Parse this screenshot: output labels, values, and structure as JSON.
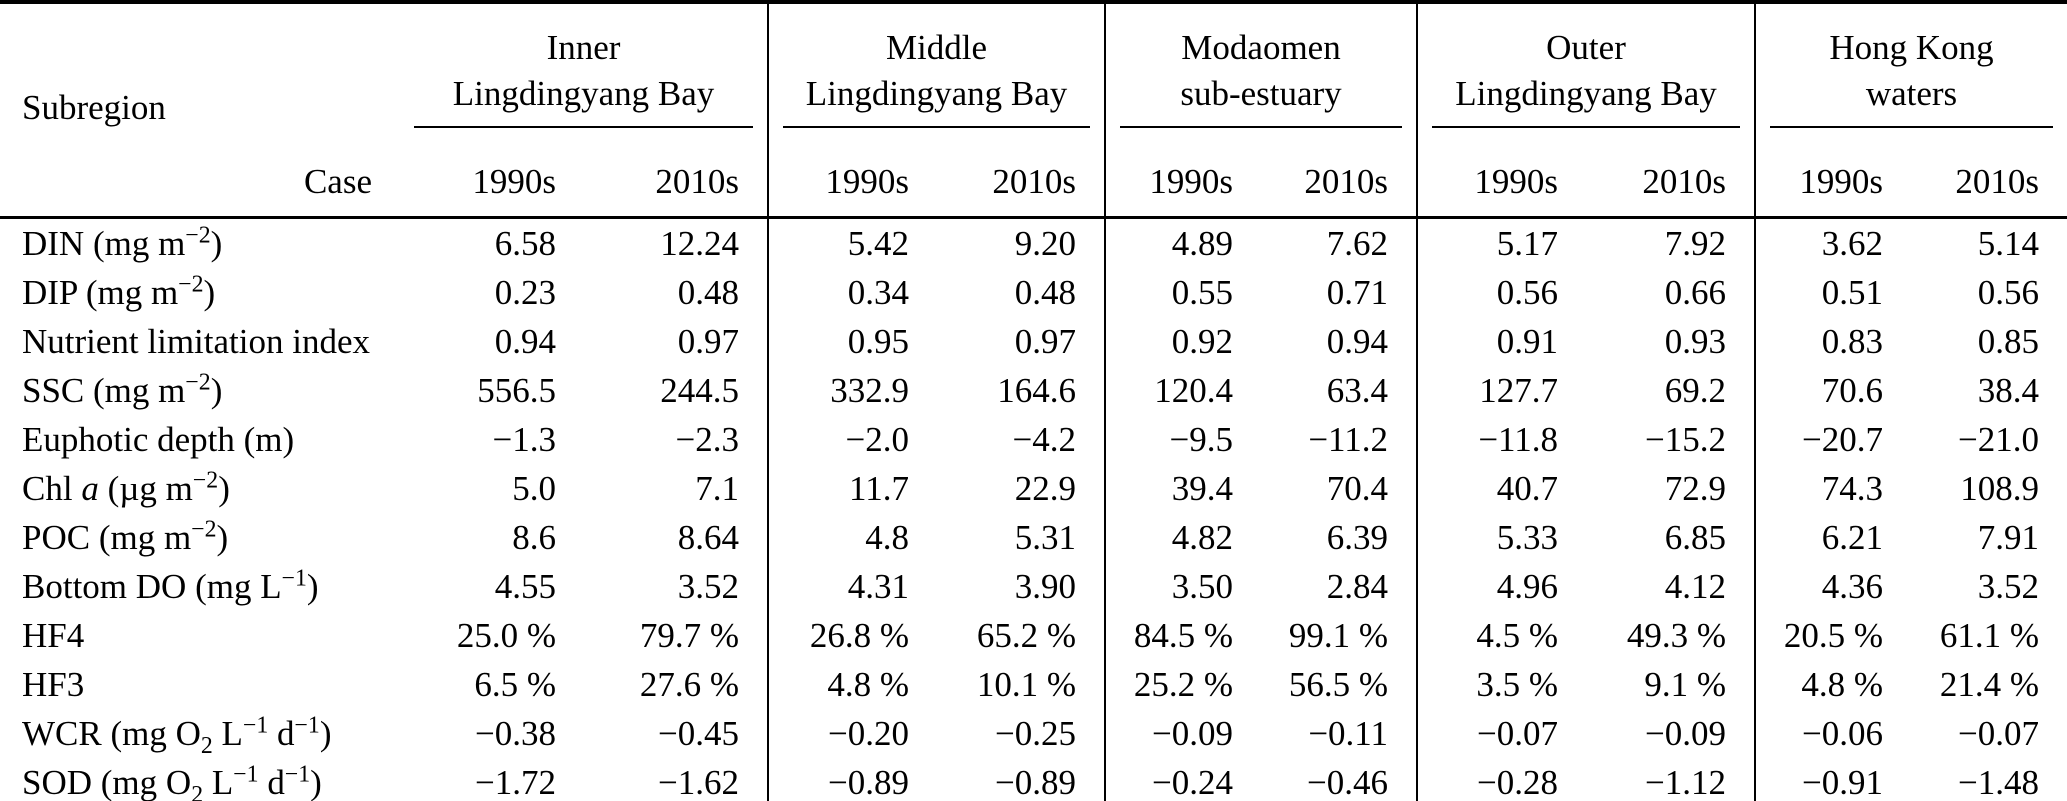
{
  "table": {
    "header": {
      "subregion_label": "Subregion",
      "case_label": "Case",
      "groups": [
        {
          "id": "inner-lingdingyang-bay",
          "lines": [
            "Inner",
            "Lingdingyang Bay"
          ],
          "periods": [
            "1990s",
            "2010s"
          ]
        },
        {
          "id": "middle-lingdingyang-bay",
          "lines": [
            "Middle",
            "Lingdingyang Bay"
          ],
          "periods": [
            "1990s",
            "2010s"
          ]
        },
        {
          "id": "modaomen-sub-estuary",
          "lines": [
            "Modaomen",
            "sub-estuary"
          ],
          "periods": [
            "1990s",
            "2010s"
          ]
        },
        {
          "id": "outer-lingdingyang-bay",
          "lines": [
            "Outer",
            "Lingdingyang Bay"
          ],
          "periods": [
            "1990s",
            "2010s"
          ]
        },
        {
          "id": "hong-kong-waters",
          "lines": [
            "Hong Kong",
            "waters"
          ],
          "periods": [
            "1990s",
            "2010s"
          ]
        }
      ]
    },
    "rows": [
      {
        "id": "din",
        "label": [
          {
            "t": "DIN (mg m"
          },
          {
            "t": "−2",
            "s": "sup"
          },
          {
            "t": ")"
          }
        ],
        "values": [
          "6.58",
          "12.24",
          "5.42",
          "9.20",
          "4.89",
          "7.62",
          "5.17",
          "7.92",
          "3.62",
          "5.14"
        ]
      },
      {
        "id": "dip",
        "label": [
          {
            "t": "DIP (mg m"
          },
          {
            "t": "−2",
            "s": "sup"
          },
          {
            "t": ")"
          }
        ],
        "values": [
          "0.23",
          "0.48",
          "0.34",
          "0.48",
          "0.55",
          "0.71",
          "0.56",
          "0.66",
          "0.51",
          "0.56"
        ]
      },
      {
        "id": "nutrient-limitation-index",
        "label": [
          {
            "t": "Nutrient limitation index"
          }
        ],
        "values": [
          "0.94",
          "0.97",
          "0.95",
          "0.97",
          "0.92",
          "0.94",
          "0.91",
          "0.93",
          "0.83",
          "0.85"
        ]
      },
      {
        "id": "ssc",
        "label": [
          {
            "t": "SSC (mg m"
          },
          {
            "t": "−2",
            "s": "sup"
          },
          {
            "t": ")"
          }
        ],
        "values": [
          "556.5",
          "244.5",
          "332.9",
          "164.6",
          "120.4",
          "63.4",
          "127.7",
          "69.2",
          "70.6",
          "38.4"
        ]
      },
      {
        "id": "euphotic-depth",
        "label": [
          {
            "t": "Euphotic depth (m)"
          }
        ],
        "values": [
          "−1.3",
          "−2.3",
          "−2.0",
          "−4.2",
          "−9.5",
          "−11.2",
          "−11.8",
          "−15.2",
          "−20.7",
          "−21.0"
        ]
      },
      {
        "id": "chl-a",
        "label": [
          {
            "t": "Chl "
          },
          {
            "t": "a",
            "s": "i"
          },
          {
            "t": " (µg m"
          },
          {
            "t": "−2",
            "s": "sup"
          },
          {
            "t": ")"
          }
        ],
        "values": [
          "5.0",
          "7.1",
          "11.7",
          "22.9",
          "39.4",
          "70.4",
          "40.7",
          "72.9",
          "74.3",
          "108.9"
        ]
      },
      {
        "id": "poc",
        "label": [
          {
            "t": "POC (mg m"
          },
          {
            "t": "−2",
            "s": "sup"
          },
          {
            "t": ")"
          }
        ],
        "values": [
          "8.6",
          "8.64",
          "4.8",
          "5.31",
          "4.82",
          "6.39",
          "5.33",
          "6.85",
          "6.21",
          "7.91"
        ]
      },
      {
        "id": "bottom-do",
        "label": [
          {
            "t": "Bottom DO (mg L"
          },
          {
            "t": "−1",
            "s": "sup"
          },
          {
            "t": ")"
          }
        ],
        "values": [
          "4.55",
          "3.52",
          "4.31",
          "3.90",
          "3.50",
          "2.84",
          "4.96",
          "4.12",
          "4.36",
          "3.52"
        ]
      },
      {
        "id": "hf4",
        "label": [
          {
            "t": "HF4"
          }
        ],
        "values": [
          "25.0 %",
          "79.7 %",
          "26.8 %",
          "65.2 %",
          "84.5 %",
          "99.1 %",
          "4.5 %",
          "49.3 %",
          "20.5 %",
          "61.1 %"
        ]
      },
      {
        "id": "hf3",
        "label": [
          {
            "t": "HF3"
          }
        ],
        "values": [
          "6.5 %",
          "27.6 %",
          "4.8 %",
          "10.1 %",
          "25.2 %",
          "56.5 %",
          "3.5 %",
          "9.1 %",
          "4.8 %",
          "21.4 %"
        ]
      },
      {
        "id": "wcr",
        "label": [
          {
            "t": "WCR (mg O"
          },
          {
            "t": "2",
            "s": "sub"
          },
          {
            "t": " L"
          },
          {
            "t": "−1",
            "s": "sup"
          },
          {
            "t": " d"
          },
          {
            "t": "−1",
            "s": "sup"
          },
          {
            "t": ")"
          }
        ],
        "values": [
          "−0.38",
          "−0.45",
          "−0.20",
          "−0.25",
          "−0.09",
          "−0.11",
          "−0.07",
          "−0.09",
          "−0.06",
          "−0.07"
        ]
      },
      {
        "id": "sod",
        "label": [
          {
            "t": "SOD (mg O"
          },
          {
            "t": "2",
            "s": "sub"
          },
          {
            "t": " L"
          },
          {
            "t": "−1",
            "s": "sup"
          },
          {
            "t": " d"
          },
          {
            "t": "−1",
            "s": "sup"
          },
          {
            "t": ")"
          }
        ],
        "values": [
          "−1.72",
          "−1.62",
          "−0.89",
          "−0.89",
          "−0.24",
          "−0.46",
          "−0.28",
          "−1.12",
          "−0.91",
          "−1.48"
        ]
      }
    ]
  }
}
